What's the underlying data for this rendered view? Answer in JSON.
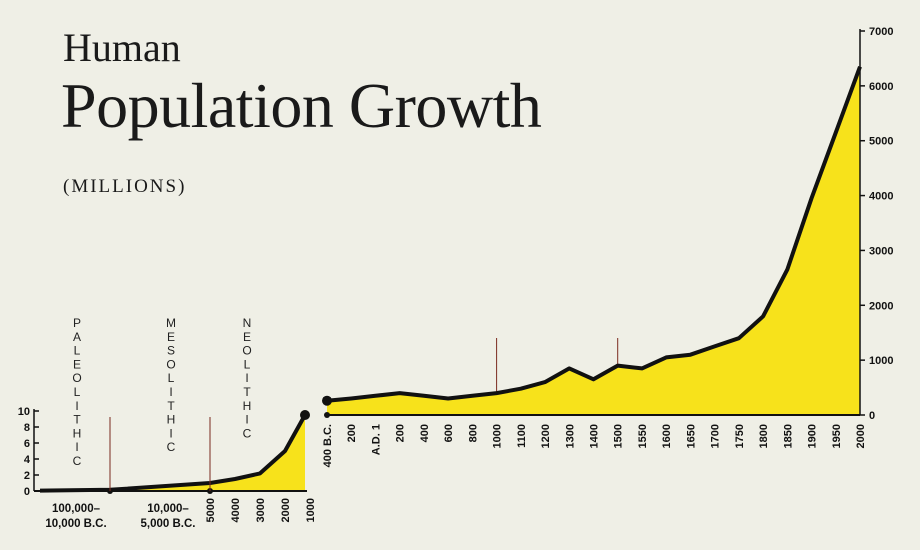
{
  "title": "Human",
  "subtitle_main": "Population Growth",
  "units_label": "(MILLIONS)",
  "colors": {
    "fill": "#f7e21b",
    "line": "#111111",
    "background": "#efefe6",
    "marker_line": "#7a2a1f"
  },
  "chart_data": [
    {
      "type": "area",
      "panel": "prehistoric",
      "x": [
        "",
        "5000",
        "4000",
        "3000",
        "2000",
        "1000"
      ],
      "values": [
        0.05,
        1,
        1.5,
        2.2,
        5,
        9.5
      ],
      "ylim": [
        0,
        10
      ],
      "y_ticks": [
        "0",
        "2",
        "4",
        "6",
        "8",
        "10"
      ],
      "x_ticks": [
        "5000",
        "4000",
        "3000",
        "2000",
        "1000"
      ],
      "eras": [
        "PALEOLITHIC",
        "MESOLITHIC",
        "NEOLITHIC"
      ],
      "era_ranges": [
        {
          "line1": "100,000–",
          "line2": "10,000 B.C."
        },
        {
          "line1": "10,000–",
          "line2": "5,000 B.C."
        }
      ]
    },
    {
      "type": "area",
      "panel": "historic",
      "x": [
        "400 B.C.",
        "200",
        "A.D. 1",
        "200",
        "400",
        "600",
        "800",
        "1000",
        "1100",
        "1200",
        "1300",
        "1400",
        "1500",
        "1550",
        "1600",
        "1650",
        "1700",
        "1750",
        "1800",
        "1850",
        "1900",
        "1950",
        "2000"
      ],
      "values": [
        260,
        300,
        350,
        400,
        350,
        300,
        350,
        400,
        480,
        600,
        850,
        650,
        900,
        850,
        1050,
        1100,
        1250,
        1400,
        1800,
        2650,
        3950,
        5150,
        6350
      ],
      "ylim": [
        0,
        7000
      ],
      "y_ticks": [
        "0",
        "1000",
        "2000",
        "3000",
        "4000",
        "5000",
        "6000",
        "7000"
      ]
    }
  ]
}
